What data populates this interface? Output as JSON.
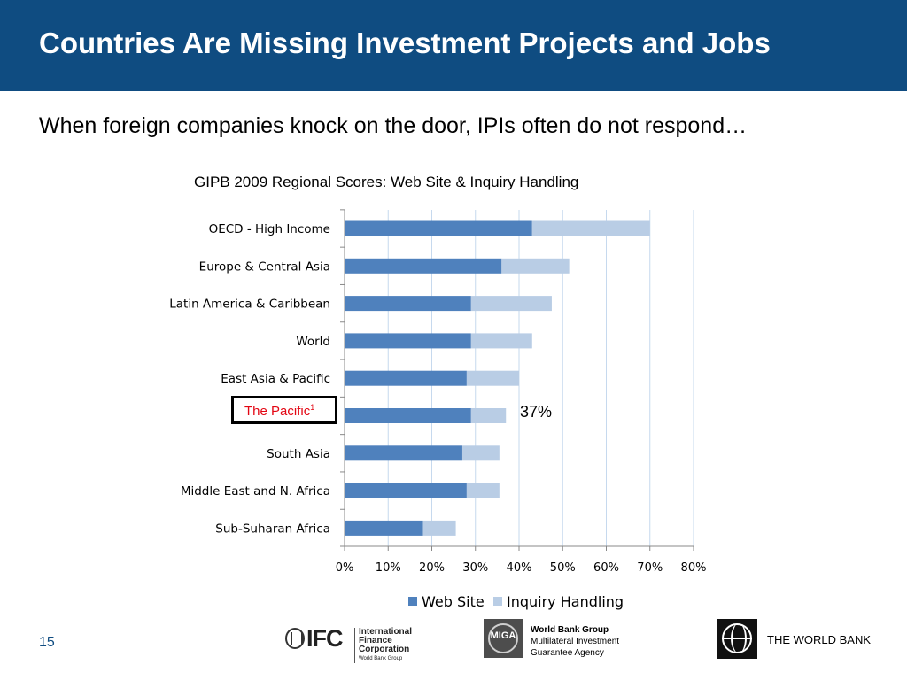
{
  "header": {
    "title": "Countries Are Missing Investment Projects and Jobs",
    "subtitle": "When foreign companies knock on the door, IPIs often do not respond…"
  },
  "highlight": {
    "label": "The Pacific",
    "superscript": "1",
    "callout": "37%"
  },
  "footer": {
    "page_number": "15",
    "ifc": {
      "letters": "IFC",
      "line1": "International",
      "line2": "Finance Corporation",
      "line3": "World Bank Group"
    },
    "miga": {
      "mark": "MIGA",
      "line1": "World Bank Group",
      "line2": "Multilateral Investment",
      "line3": "Guarantee Agency"
    },
    "world_bank": "THE WORLD BANK"
  },
  "colors": {
    "title_bar": "#0f4c81",
    "web_site": "#4f81bd",
    "inquiry_handling": "#b9cde5",
    "highlight": "#e30613"
  },
  "chart_data": {
    "type": "bar",
    "orientation": "horizontal",
    "stacked": true,
    "title": "GIPB 2009 Regional Scores: Web Site & Inquiry Handling",
    "categories": [
      "OECD - High Income",
      "Europe & Central Asia",
      "Latin America & Caribbean",
      "World",
      "East Asia & Pacific",
      "",
      "South Asia",
      "Middle East and N. Africa",
      "Sub-Suharan Africa"
    ],
    "series": [
      {
        "name": "Web Site",
        "values": [
          43,
          36,
          29,
          29,
          28,
          29,
          27,
          28,
          18
        ]
      },
      {
        "name": "Inquiry Handling",
        "values": [
          27,
          15.5,
          18.5,
          14,
          12,
          8,
          8.5,
          7.5,
          7.5
        ]
      }
    ],
    "xlim": [
      0,
      80
    ],
    "x_ticks": [
      "0%",
      "10%",
      "20%",
      "30%",
      "40%",
      "50%",
      "60%",
      "70%",
      "80%"
    ],
    "grid": true,
    "legend": "bottom"
  }
}
